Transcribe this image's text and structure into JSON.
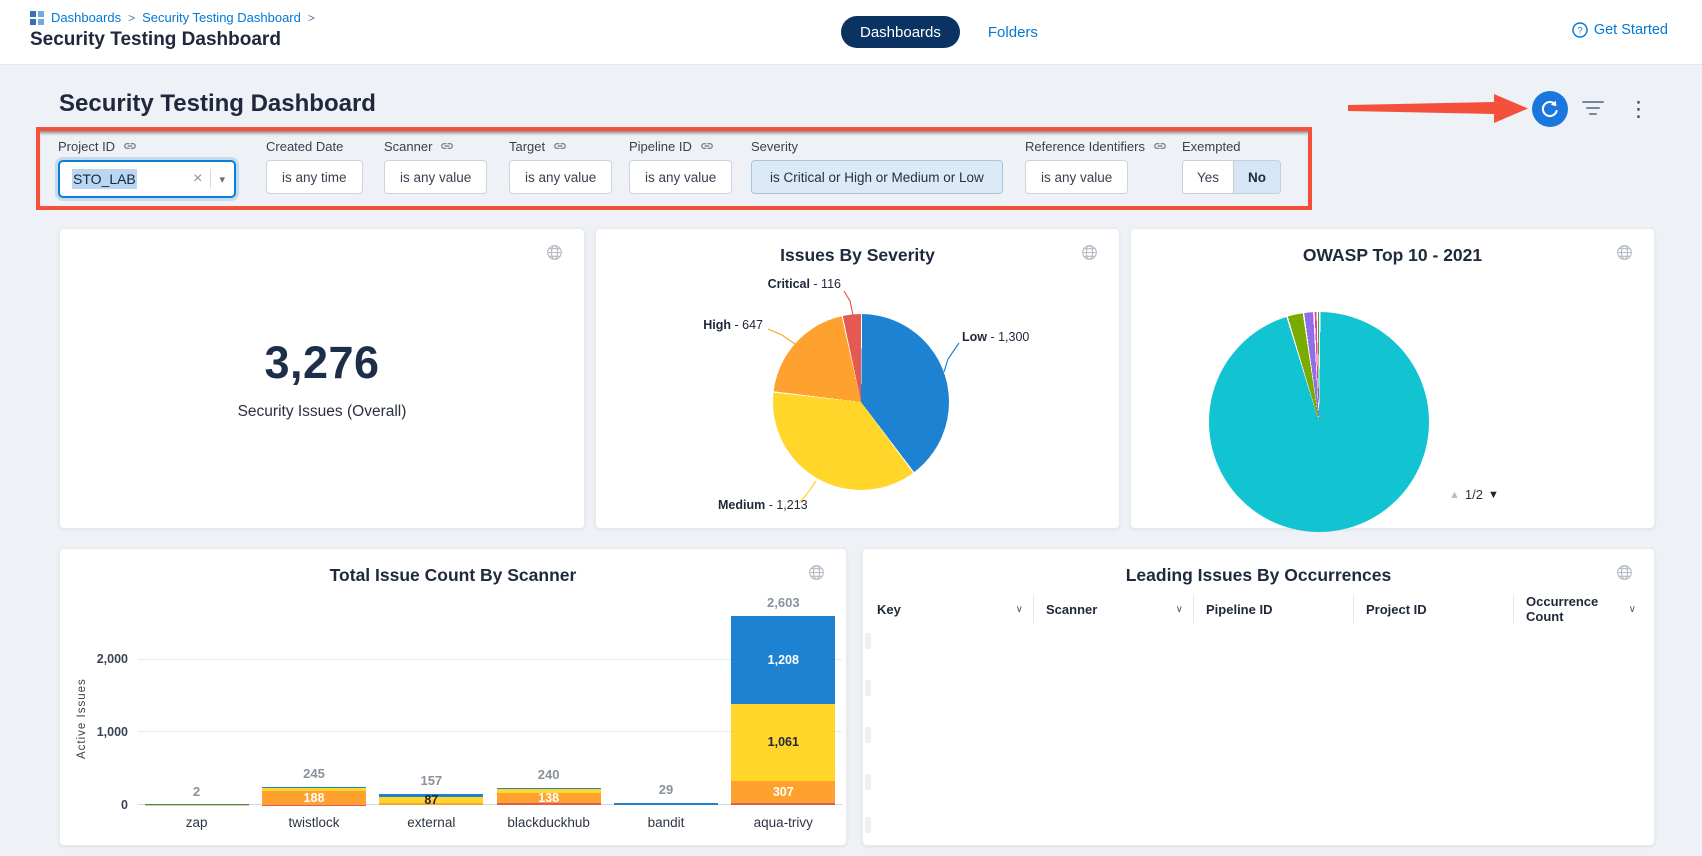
{
  "header": {
    "breadcrumb": {
      "items": [
        "Dashboards",
        "Security Testing Dashboard"
      ],
      "separator": ">"
    },
    "title": "Security Testing Dashboard",
    "tabs": {
      "dashboards": "Dashboards",
      "folders": "Folders"
    },
    "get_started": "Get Started"
  },
  "dashboard": {
    "title": "Security Testing Dashboard"
  },
  "filters": {
    "project_id": {
      "label": "Project ID",
      "value": "STO_LAB"
    },
    "created_date": {
      "label": "Created Date",
      "value": "is any time"
    },
    "scanner": {
      "label": "Scanner",
      "value": "is any value"
    },
    "target": {
      "label": "Target",
      "value": "is any value"
    },
    "pipeline_id": {
      "label": "Pipeline ID",
      "value": "is any value"
    },
    "severity": {
      "label": "Severity",
      "value": "is Critical or High or Medium or Low"
    },
    "reference_identifiers": {
      "label": "Reference Identifiers",
      "value": "is any value"
    },
    "exempted": {
      "label": "Exempted",
      "yes": "Yes",
      "no": "No",
      "selected": "No"
    }
  },
  "cards": {
    "overall": {
      "value": "3,276",
      "label": "Security Issues (Overall)"
    },
    "severity": {
      "title": "Issues By Severity"
    },
    "owasp": {
      "title": "OWASP Top 10 - 2021",
      "page": "1/2"
    },
    "scanner_chart": {
      "title": "Total Issue Count By Scanner"
    },
    "occurrences": {
      "title": "Leading Issues By Occurrences",
      "columns": [
        "Key",
        "Scanner",
        "Pipeline ID",
        "Project ID",
        "Occurrence Count"
      ]
    }
  },
  "colors": {
    "accent_blue": "#0278d5",
    "navy_pill": "#0a3364",
    "refresh_blue": "#1a77dd",
    "annotation_red": "#f4503c",
    "severity_low": "#1e82d2",
    "severity_medium": "#ffd629",
    "severity_high": "#ffa12e",
    "severity_critical": "#e45a52",
    "owasp_teal": "#12c3d2"
  },
  "chart_data": [
    {
      "type": "pie",
      "title": "Issues By Severity",
      "total": 3276,
      "gap_deg": 0.8,
      "slices": [
        {
          "name": "Low",
          "value": 1300,
          "color": "#1e82d2",
          "callout_bold": "Low",
          "callout_rest": " - 1,300"
        },
        {
          "name": "Medium",
          "value": 1213,
          "color": "#ffd629",
          "callout_bold": "Medium",
          "callout_rest": " - 1,213"
        },
        {
          "name": "High",
          "value": 647,
          "color": "#ffa12e",
          "callout_bold": "High",
          "callout_rest": " - 647"
        },
        {
          "name": "Critical",
          "value": 116,
          "color": "#e45a52",
          "callout_bold": "Critical",
          "callout_rest": " - 116"
        }
      ]
    },
    {
      "type": "pie",
      "title": "OWASP Top 10 - 2021",
      "total": 100,
      "gap_deg": 0.8,
      "pagination": "1/2",
      "slices": [
        {
          "value": 94.3,
          "color": "#12c3d2"
        },
        {
          "value": 2.4,
          "color": "#7aab00"
        },
        {
          "value": 1.5,
          "color": "#8f6fe8"
        },
        {
          "value": 0.5,
          "color": "#f23d97"
        },
        {
          "value": 0.35,
          "color": "#2fae3a"
        }
      ]
    },
    {
      "type": "bar",
      "stacked": true,
      "title": "Total Issue Count By Scanner",
      "xlabel": "",
      "ylabel": "Active Issues",
      "categories": [
        "zap",
        "twistlock",
        "external",
        "blackduckhub",
        "bandit",
        "aqua-trivy"
      ],
      "totals": [
        2,
        245,
        157,
        240,
        29,
        2603
      ],
      "total_labels": [
        "2",
        "245",
        "157",
        "240",
        "29",
        "2,603"
      ],
      "ymax": 2700,
      "ytick_step": 1000,
      "yticks": [
        "0",
        "1,000",
        "2,000"
      ],
      "grid": true,
      "series": [
        {
          "name": "Critical",
          "color": "#e45a52",
          "label_color": "#ffffff",
          "values": [
            0,
            6,
            0,
            25,
            0,
            27
          ],
          "labels": [
            "",
            "",
            "",
            "",
            "",
            ""
          ]
        },
        {
          "name": "High",
          "color": "#ffa12e",
          "label_color": "#ffffff",
          "values": [
            0,
            188,
            25,
            138,
            0,
            307
          ],
          "labels": [
            "",
            "188",
            "",
            "138",
            "",
            "307"
          ]
        },
        {
          "name": "Medium",
          "color": "#ffd629",
          "label_color": "#23293a",
          "values": [
            1,
            44,
            87,
            60,
            0,
            1061
          ],
          "labels": [
            "",
            "",
            "87",
            "",
            "",
            "1,061"
          ]
        },
        {
          "name": "Low",
          "color": "#1e82d2",
          "label_color": "#ffffff",
          "values": [
            1,
            7,
            45,
            17,
            29,
            1208
          ],
          "labels": [
            "",
            "",
            "",
            "",
            "",
            "1,208"
          ]
        }
      ]
    }
  ]
}
